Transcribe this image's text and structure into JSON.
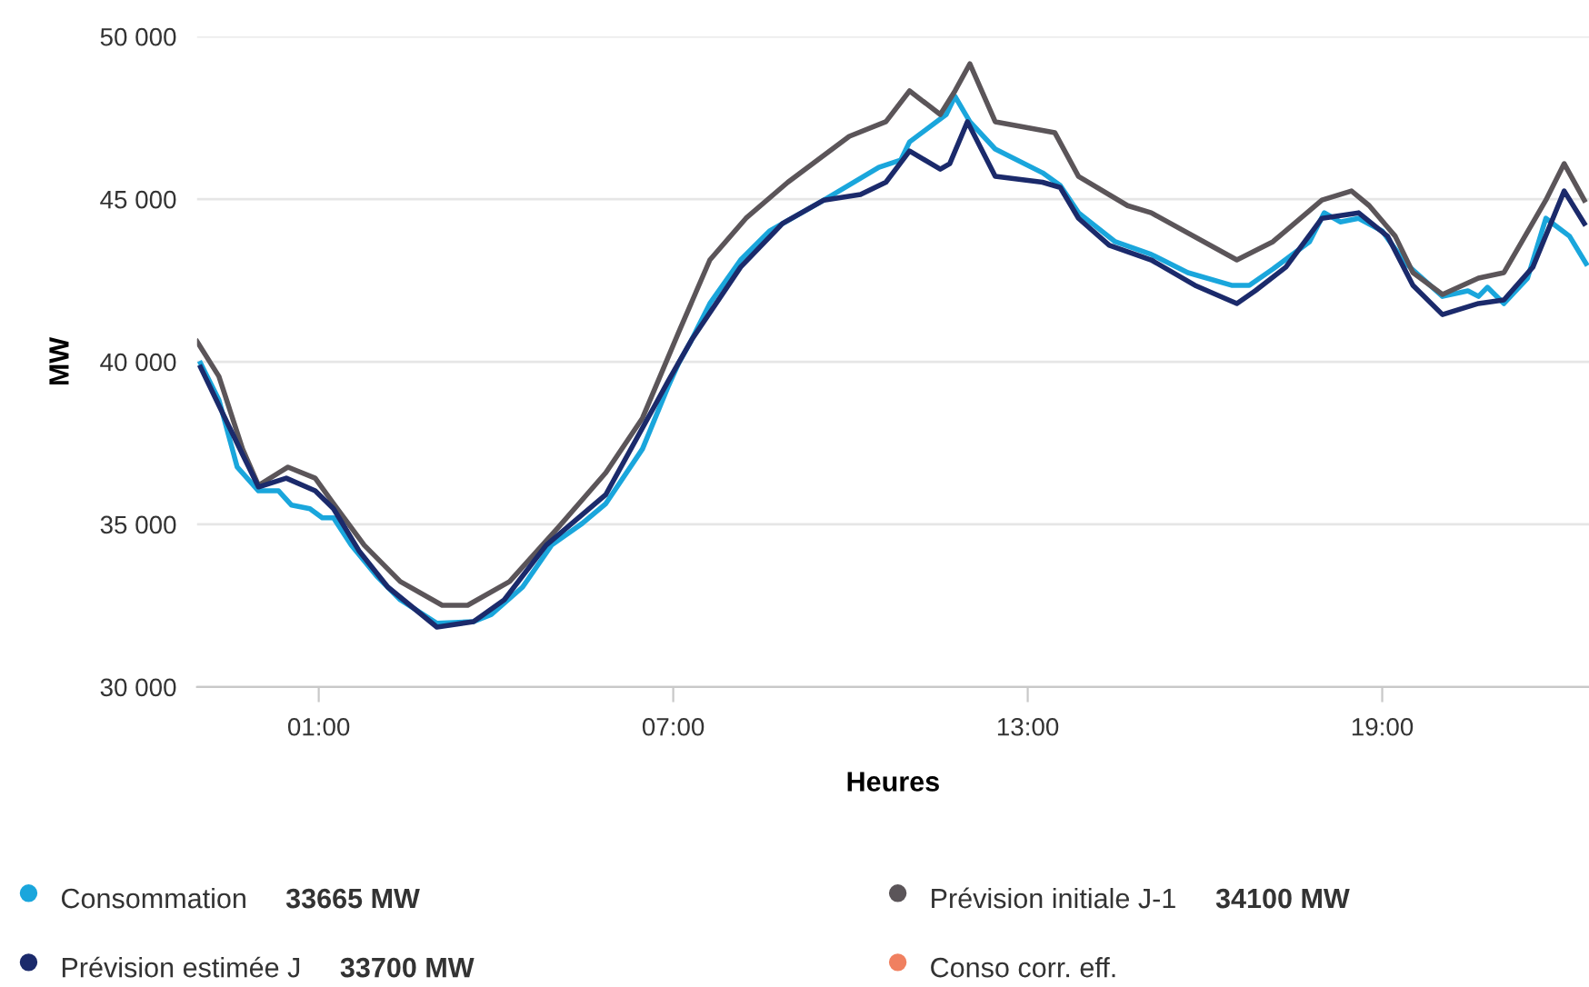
{
  "chart_data": {
    "type": "line",
    "xlabel": "Heures",
    "ylabel": "MW",
    "xlim": [
      -1.06,
      22.5
    ],
    "xticks": [
      {
        "value": 1,
        "label": "01:00"
      },
      {
        "value": 7,
        "label": "07:00"
      },
      {
        "value": 13,
        "label": "13:00"
      },
      {
        "value": 19,
        "label": "19:00"
      }
    ],
    "ylim": [
      30000,
      50000
    ],
    "yticks": [
      {
        "value": 30000,
        "label": "30 000"
      },
      {
        "value": 35000,
        "label": "35 000"
      },
      {
        "value": 40000,
        "label": "40 000"
      },
      {
        "value": 45000,
        "label": "45 000"
      },
      {
        "value": 50000,
        "label": "50 000"
      }
    ],
    "grid": "y",
    "legend": "bottom",
    "marker": "none",
    "line_style": "solid",
    "annotations": [
      "33665 MW",
      "34100 MW",
      "33700 MW"
    ],
    "series": [
      {
        "name": "Consommation",
        "color": "#1aa6dc",
        "x": [
          -1.0,
          -0.69,
          -0.38,
          -0.02,
          0.32,
          0.54,
          0.85,
          1.06,
          1.25,
          1.55,
          1.98,
          2.38,
          3.0,
          3.62,
          3.92,
          4.45,
          4.94,
          5.46,
          5.86,
          6.48,
          6.91,
          7.09,
          7.31,
          7.62,
          8.14,
          8.63,
          9.55,
          10.48,
          10.85,
          11.0,
          11.62,
          11.77,
          12.02,
          12.45,
          13.25,
          13.55,
          13.86,
          14.48,
          15.09,
          15.71,
          16.45,
          16.75,
          17.15,
          17.77,
          18.02,
          18.29,
          18.6,
          19.0,
          19.4,
          20.02,
          20.45,
          20.63,
          20.78,
          21.06,
          21.46,
          21.77,
          22.17,
          22.45
        ],
        "values": [
          39950,
          38830,
          36760,
          36030,
          36030,
          35590,
          35480,
          35200,
          35200,
          34360,
          33410,
          32680,
          31960,
          32010,
          32230,
          33070,
          34360,
          35030,
          35640,
          37320,
          39220,
          39950,
          40670,
          41790,
          43130,
          44020,
          44970,
          45980,
          46200,
          46760,
          47600,
          48160,
          47380,
          46540,
          45810,
          45420,
          44580,
          43690,
          43300,
          42740,
          42350,
          42350,
          42850,
          43690,
          44580,
          44300,
          44410,
          44020,
          43020,
          42010,
          42180,
          42010,
          42290,
          41790,
          42570,
          44410,
          43860,
          43020
        ]
      },
      {
        "name": "Prévision initiale J-1",
        "color": "#5b5559",
        "x": [
          -1.06,
          -0.69,
          -0.29,
          -0.02,
          0.48,
          0.94,
          1.25,
          1.77,
          2.38,
          3.09,
          3.52,
          4.23,
          5.06,
          5.86,
          6.48,
          7.09,
          7.62,
          8.23,
          8.94,
          9.98,
          10.6,
          11.0,
          11.52,
          11.77,
          12.02,
          12.45,
          13.46,
          13.86,
          14.69,
          15.09,
          16.54,
          17.15,
          17.98,
          18.48,
          18.78,
          19.22,
          19.52,
          20.02,
          20.63,
          21.06,
          21.77,
          22.08,
          22.42
        ],
        "values": [
          40620,
          39550,
          37320,
          36200,
          36760,
          36420,
          35640,
          34360,
          33240,
          32510,
          32510,
          33240,
          34920,
          36590,
          38270,
          40900,
          43130,
          44410,
          45520,
          46930,
          47380,
          48330,
          47600,
          48330,
          49160,
          47380,
          47040,
          45700,
          44800,
          44580,
          43130,
          43690,
          44970,
          45250,
          44800,
          43860,
          42740,
          42070,
          42570,
          42740,
          44970,
          46090,
          44970
        ]
      },
      {
        "name": "Prévision estimée J",
        "color": "#1b2a6b",
        "x": [
          -1.0,
          -0.69,
          -0.29,
          -0.02,
          0.45,
          0.94,
          1.25,
          1.68,
          2.17,
          3.0,
          3.62,
          4.14,
          4.85,
          5.86,
          6.69,
          6.91,
          7.31,
          8.14,
          8.85,
          9.55,
          10.17,
          10.6,
          11.0,
          11.52,
          11.68,
          11.98,
          12.45,
          13.25,
          13.55,
          13.86,
          14.38,
          15.09,
          15.83,
          16.54,
          16.85,
          17.37,
          17.98,
          18.6,
          19.09,
          19.52,
          20.02,
          20.63,
          21.06,
          21.55,
          22.08,
          22.42
        ],
        "values": [
          39830,
          38660,
          37150,
          36150,
          36420,
          36030,
          35480,
          34190,
          33070,
          31840,
          32010,
          32680,
          34360,
          35920,
          38660,
          39390,
          40670,
          42910,
          44250,
          44970,
          45140,
          45520,
          46480,
          45920,
          46090,
          47380,
          45700,
          45520,
          45360,
          44410,
          43580,
          43130,
          42350,
          41790,
          42180,
          42910,
          44410,
          44580,
          43860,
          42350,
          41450,
          41790,
          41900,
          42910,
          45250,
          44250
        ]
      },
      {
        "name": "Conso corr. eff.",
        "color": "#f08060"
      }
    ]
  }
}
